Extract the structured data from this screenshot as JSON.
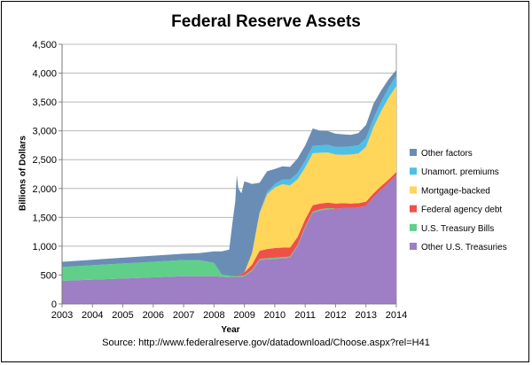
{
  "chart_data": {
    "type": "area",
    "title": "Federal Reserve Assets",
    "xlabel": "Year",
    "ylabel": "Billions of Dollars",
    "source": "Source: http://www.federalreserve.gov/datadownload/Choose.aspx?rel=H41",
    "ylim": [
      0,
      4500
    ],
    "xlim": [
      2003,
      2014
    ],
    "yticks": [
      "0",
      "500",
      "1,000",
      "1,500",
      "2,000",
      "2,500",
      "3,000",
      "3,500",
      "4,000",
      "4,500"
    ],
    "xticks": [
      "2003",
      "2004",
      "2005",
      "2006",
      "2007",
      "2008",
      "2009",
      "2010",
      "2011",
      "2012",
      "2013",
      "2014"
    ],
    "grid": "horizontal",
    "legend_position": "right",
    "x": [
      2003.0,
      2003.5,
      2004.0,
      2004.5,
      2005.0,
      2005.5,
      2006.0,
      2006.5,
      2007.0,
      2007.5,
      2008.0,
      2008.25,
      2008.5,
      2008.6,
      2008.7,
      2008.75,
      2008.8,
      2008.9,
      2009.0,
      2009.25,
      2009.5,
      2009.75,
      2010.0,
      2010.25,
      2010.5,
      2010.75,
      2011.0,
      2011.25,
      2011.5,
      2011.75,
      2012.0,
      2012.25,
      2012.5,
      2012.75,
      2013.0,
      2013.25,
      2013.5,
      2013.75,
      2014.0
    ],
    "series": [
      {
        "name": "Other U.S. Treasuries",
        "color": "#9e7ec4",
        "values": [
          400,
          410,
          420,
          430,
          440,
          450,
          460,
          470,
          480,
          480,
          480,
          470,
          460,
          460,
          460,
          460,
          470,
          470,
          480,
          570,
          760,
          770,
          780,
          790,
          800,
          1000,
          1320,
          1580,
          1620,
          1640,
          1650,
          1660,
          1660,
          1670,
          1700,
          1850,
          1980,
          2100,
          2230
        ]
      },
      {
        "name": "U.S. Treasury Bills",
        "color": "#5fcf8a",
        "values": [
          240,
          245,
          250,
          255,
          260,
          265,
          270,
          275,
          280,
          280,
          230,
          40,
          30,
          20,
          15,
          15,
          15,
          15,
          15,
          20,
          20,
          20,
          20,
          20,
          20,
          20,
          20,
          20,
          20,
          20,
          0,
          0,
          0,
          0,
          0,
          0,
          0,
          0,
          0
        ]
      },
      {
        "name": "Federal agency debt",
        "color": "#f0504a",
        "values": [
          0,
          0,
          0,
          0,
          0,
          0,
          0,
          0,
          0,
          0,
          0,
          0,
          0,
          0,
          5,
          10,
          20,
          30,
          50,
          90,
          140,
          160,
          168,
          165,
          155,
          140,
          125,
          110,
          100,
          95,
          90,
          85,
          80,
          75,
          70,
          65,
          60,
          58,
          57
        ]
      },
      {
        "name": "Mortgage-backed",
        "color": "#ffd55a",
        "values": [
          0,
          0,
          0,
          0,
          0,
          0,
          0,
          0,
          0,
          0,
          0,
          0,
          0,
          0,
          0,
          0,
          0,
          0,
          0,
          200,
          650,
          950,
          1050,
          1100,
          1080,
          1000,
          900,
          900,
          880,
          870,
          850,
          840,
          850,
          860,
          950,
          1150,
          1300,
          1420,
          1490
        ]
      },
      {
        "name": "Unamort. premiums",
        "color": "#4ec0e6",
        "values": [
          0,
          0,
          0,
          0,
          0,
          0,
          0,
          0,
          0,
          0,
          0,
          0,
          0,
          0,
          0,
          0,
          0,
          0,
          0,
          0,
          20,
          40,
          60,
          80,
          100,
          110,
          120,
          130,
          130,
          130,
          130,
          135,
          140,
          145,
          150,
          155,
          160,
          170,
          180
        ]
      },
      {
        "name": "Other factors",
        "color": "#6a8db5",
        "values": [
          90,
          92,
          95,
          98,
          100,
          102,
          105,
          108,
          110,
          120,
          200,
          400,
          450,
          900,
          1300,
          1750,
          1500,
          1400,
          1580,
          1200,
          510,
          360,
          260,
          230,
          220,
          250,
          260,
          300,
          250,
          240,
          230,
          220,
          200,
          210,
          230,
          250,
          200,
          150,
          100
        ]
      }
    ]
  }
}
